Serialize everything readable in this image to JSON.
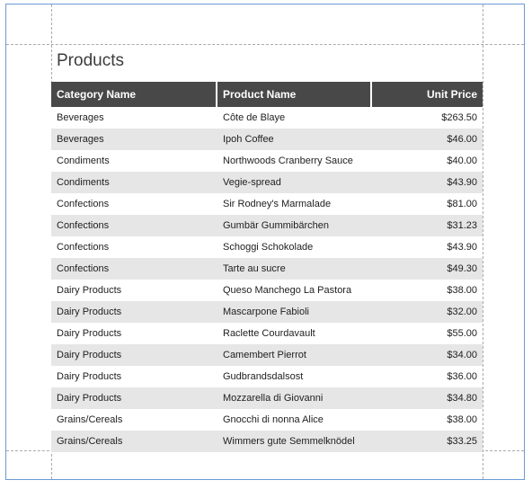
{
  "report": {
    "title": "Products",
    "columns": {
      "category": "Category Name",
      "product": "Product Name",
      "price": "Unit Price"
    },
    "rows": [
      {
        "category": "Beverages",
        "product": "Côte de Blaye",
        "price": "$263.50"
      },
      {
        "category": "Beverages",
        "product": "Ipoh Coffee",
        "price": "$46.00"
      },
      {
        "category": "Condiments",
        "product": "Northwoods Cranberry Sauce",
        "price": "$40.00"
      },
      {
        "category": "Condiments",
        "product": "Vegie-spread",
        "price": "$43.90"
      },
      {
        "category": "Confections",
        "product": "Sir Rodney's Marmalade",
        "price": "$81.00"
      },
      {
        "category": "Confections",
        "product": "Gumbär Gummibärchen",
        "price": "$31.23"
      },
      {
        "category": "Confections",
        "product": "Schoggi Schokolade",
        "price": "$43.90"
      },
      {
        "category": "Confections",
        "product": "Tarte au sucre",
        "price": "$49.30"
      },
      {
        "category": "Dairy Products",
        "product": "Queso Manchego La Pastora",
        "price": "$38.00"
      },
      {
        "category": "Dairy Products",
        "product": "Mascarpone Fabioli",
        "price": "$32.00"
      },
      {
        "category": "Dairy Products",
        "product": "Raclette Courdavault",
        "price": "$55.00"
      },
      {
        "category": "Dairy Products",
        "product": "Camembert Pierrot",
        "price": "$34.00"
      },
      {
        "category": "Dairy Products",
        "product": "Gudbrandsdalsost",
        "price": "$36.00"
      },
      {
        "category": "Dairy Products",
        "product": "Mozzarella di Giovanni",
        "price": "$34.80"
      },
      {
        "category": "Grains/Cereals",
        "product": "Gnocchi di nonna Alice",
        "price": "$38.00"
      },
      {
        "category": "Grains/Cereals",
        "product": "Wimmers gute Semmelknödel",
        "price": "$33.25"
      }
    ]
  },
  "colors": {
    "header_bg": "#484848",
    "row_alt_bg": "#e6e6e6",
    "page_border": "#6a9bd4",
    "guide_line": "#aaaaaa"
  }
}
